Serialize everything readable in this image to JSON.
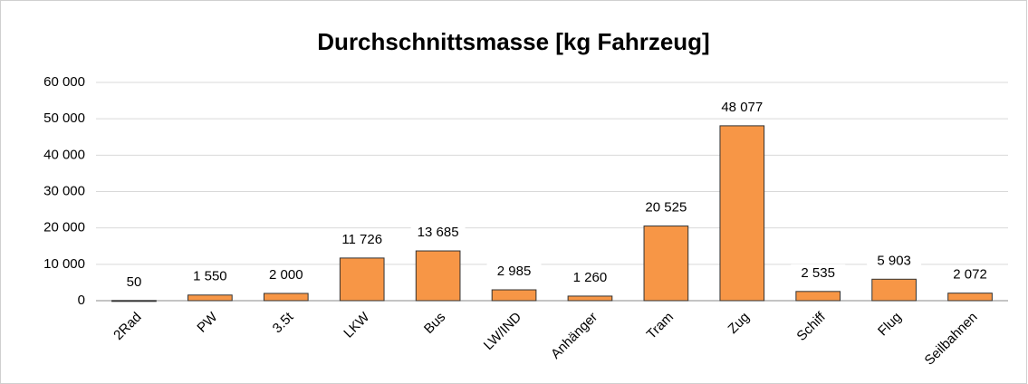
{
  "chart_data": {
    "type": "bar",
    "title": "Durchschnittsmasse [kg Fahrzeug]",
    "categories": [
      "2Rad",
      "PW",
      "3.5t",
      "LKW",
      "Bus",
      "LW/IND",
      "Anhänger",
      "Tram",
      "Zug",
      "Schiff",
      "Flug",
      "Seilbahnen"
    ],
    "values": [
      50,
      1550,
      2000,
      11726,
      13685,
      2985,
      1260,
      20525,
      48077,
      2535,
      5903,
      2072
    ],
    "value_labels": [
      "50",
      "1 550",
      "2 000",
      "11 726",
      "13 685",
      "2 985",
      "1 260",
      "20 525",
      "48 077",
      "2 535",
      "5 903",
      "2 072"
    ],
    "color": "#f79646",
    "ylim": [
      0,
      60000
    ],
    "yticks": [
      0,
      {
        "value": 10000,
        "label": "10 000"
      },
      {
        "value": 20000,
        "label": "20 000"
      },
      {
        "value": 30000,
        "label": "30 000"
      },
      {
        "value": 40000,
        "label": "40 000"
      },
      {
        "value": 50000,
        "label": "50 000"
      },
      {
        "value": 60000,
        "label": "60 000"
      }
    ],
    "grid": true
  }
}
